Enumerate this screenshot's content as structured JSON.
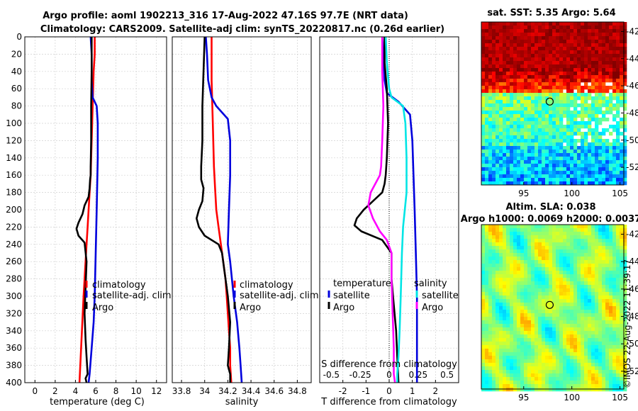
{
  "colors": {
    "climatology": "#ff0000",
    "satellite": "#0000dd",
    "argo": "#000000",
    "temperature_diff": "#ff00ff",
    "salinity_diff": "#00e5e5",
    "zero_line": "#000000"
  },
  "header": {
    "line1": "Argo profile: aoml 1902213_316 17-Aug-2022 47.16S 97.7E (NRT data)",
    "line2": "Climatology: CARS2009. Satellite-adj clim: synTS_20220817.nc (0.26d earlier)"
  },
  "depth_ticks": [
    "0",
    "20",
    "40",
    "60",
    "80",
    "100",
    "120",
    "140",
    "160",
    "180",
    "200",
    "220",
    "240",
    "260",
    "280",
    "300",
    "320",
    "340",
    "360",
    "380",
    "400"
  ],
  "legends": {
    "climatology": "climatology",
    "satellite_adj": "satellite-adj. clim",
    "argo": "Argo",
    "temperature": "temperature",
    "salinity": "salinity",
    "satellite": "satellite"
  },
  "chart_data": [
    {
      "id": "temperature",
      "type": "line",
      "xlabel": "temperature (deg C)",
      "ylabel": "",
      "xlim": [
        -1,
        13
      ],
      "ylim": [
        0,
        400
      ],
      "xticks": [
        "0",
        "2",
        "4",
        "6",
        "8",
        "10",
        "12"
      ],
      "grid": true,
      "series": [
        {
          "name": "climatology",
          "color": "#ff0000",
          "x": [
            5.9,
            5.9,
            5.8,
            5.75,
            5.7,
            5.65,
            5.6,
            5.55,
            5.5,
            5.4,
            5.3,
            5.2,
            5.1,
            5.0,
            4.9,
            4.8,
            4.6,
            4.4
          ],
          "y": [
            0,
            20,
            40,
            60,
            80,
            100,
            120,
            140,
            160,
            180,
            200,
            220,
            240,
            260,
            280,
            300,
            350,
            400
          ]
        },
        {
          "name": "satellite-adj. clim",
          "color": "#0000dd",
          "x": [
            5.5,
            5.6,
            5.6,
            5.7,
            6.1,
            6.2,
            6.2,
            6.1,
            6.0,
            5.9,
            5.8,
            5.6,
            5.4,
            5.3
          ],
          "y": [
            0,
            20,
            50,
            70,
            80,
            100,
            140,
            200,
            250,
            300,
            330,
            360,
            390,
            400
          ]
        },
        {
          "name": "Argo",
          "color": "#000000",
          "x": [
            5.6,
            5.6,
            5.55,
            5.55,
            5.5,
            5.5,
            5.45,
            5.4,
            5.3,
            4.9,
            4.7,
            4.3,
            4.1,
            4.3,
            4.9,
            5.1,
            5.0,
            4.9,
            5.0,
            5.1,
            5.2,
            5.0,
            5.1
          ],
          "y": [
            0,
            40,
            80,
            120,
            150,
            160,
            165,
            175,
            185,
            195,
            205,
            215,
            222,
            230,
            238,
            260,
            290,
            320,
            350,
            370,
            390,
            395,
            400
          ]
        }
      ]
    },
    {
      "id": "salinity",
      "type": "line",
      "xlabel": "salinity",
      "ylabel": "",
      "xlim": [
        33.72,
        34.92
      ],
      "ylim": [
        0,
        400
      ],
      "xticks": [
        "33.8",
        "34",
        "34.2",
        "34.4",
        "34.6",
        "34.8"
      ],
      "grid": true,
      "series": [
        {
          "name": "climatology",
          "color": "#ff0000",
          "x": [
            34.06,
            34.06,
            34.07,
            34.08,
            34.09,
            34.1,
            34.12,
            34.14,
            34.16,
            34.18,
            34.19,
            34.2,
            34.21,
            34.22,
            34.22,
            34.23
          ],
          "y": [
            0,
            50,
            100,
            150,
            175,
            200,
            220,
            240,
            260,
            280,
            300,
            320,
            340,
            360,
            380,
            400
          ]
        },
        {
          "name": "satellite-adj. clim",
          "color": "#0000dd",
          "x": [
            34.01,
            34.02,
            34.03,
            34.06,
            34.1,
            34.2,
            34.22,
            34.22,
            34.21,
            34.2,
            34.22,
            34.25,
            34.28,
            34.3,
            34.31,
            34.32
          ],
          "y": [
            0,
            20,
            50,
            70,
            80,
            95,
            120,
            160,
            200,
            240,
            260,
            300,
            330,
            360,
            380,
            400
          ]
        },
        {
          "name": "Argo",
          "color": "#000000",
          "x": [
            34.0,
            33.99,
            33.98,
            33.98,
            33.97,
            33.97,
            33.99,
            33.98,
            33.95,
            33.93,
            33.95,
            34.0,
            34.12,
            34.15,
            34.18,
            34.2,
            34.22,
            34.21,
            34.2,
            34.22,
            34.22
          ],
          "y": [
            0,
            40,
            80,
            120,
            150,
            165,
            175,
            190,
            200,
            210,
            220,
            230,
            240,
            250,
            280,
            300,
            330,
            360,
            380,
            390,
            400
          ]
        }
      ]
    },
    {
      "id": "difference",
      "type": "line",
      "xlabel": "T difference from climatology",
      "xlabel_top": "S difference from climatology",
      "xlim": [
        -3,
        3
      ],
      "ylim": [
        0,
        400
      ],
      "xticks": [
        "-2",
        "-1",
        "0",
        "1",
        "2"
      ],
      "top_ticks": [
        "-0.5",
        "-0.25",
        "0",
        "0.25",
        "0.5"
      ],
      "top_tick_values": [
        -2.5,
        -1.25,
        0,
        1.25,
        2.5
      ],
      "grid": true,
      "series": [
        {
          "name": "temperature satellite",
          "color": "#0000dd",
          "x": [
            -0.3,
            -0.25,
            -0.2,
            -0.1,
            0.4,
            0.9,
            1.0,
            1.05,
            1.1,
            1.15,
            1.2,
            1.2,
            1.2,
            1.2
          ],
          "y": [
            0,
            20,
            50,
            65,
            75,
            90,
            120,
            160,
            200,
            250,
            300,
            340,
            380,
            400
          ]
        },
        {
          "name": "temperature Argo",
          "color": "#000000",
          "x": [
            -0.2,
            -0.2,
            -0.1,
            -0.05,
            -0.1,
            -0.15,
            -0.2,
            -0.3,
            -0.7,
            -1.1,
            -1.4,
            -1.5,
            -1.2,
            -0.3,
            0.1,
            0.1,
            0.2,
            0.3,
            0.35,
            0.4
          ],
          "y": [
            0,
            30,
            60,
            100,
            140,
            160,
            170,
            180,
            190,
            200,
            210,
            218,
            225,
            235,
            250,
            280,
            310,
            340,
            370,
            400
          ]
        },
        {
          "name": "salinity satellite",
          "color": "#00e5e5",
          "x": [
            -0.15,
            -0.1,
            0,
            0.1,
            0.6,
            0.7,
            0.75,
            0.75,
            0.6,
            0.55,
            0.5,
            0.45,
            0.4,
            0.35,
            0.35
          ],
          "y": [
            0,
            30,
            60,
            70,
            80,
            100,
            140,
            180,
            220,
            250,
            300,
            340,
            370,
            390,
            400
          ]
        },
        {
          "name": "salinity Argo",
          "color": "#ff00ff",
          "x": [
            -0.3,
            -0.3,
            -0.25,
            -0.3,
            -0.35,
            -0.4,
            -0.6,
            -0.8,
            -0.9,
            -0.7,
            -0.4,
            -0.1,
            0.1,
            0.1,
            0.15,
            0.2,
            0.2,
            0.25
          ],
          "y": [
            0,
            40,
            80,
            120,
            150,
            160,
            170,
            180,
            195,
            210,
            225,
            235,
            250,
            280,
            320,
            360,
            390,
            400
          ]
        }
      ]
    },
    {
      "id": "sst_map",
      "type": "heatmap",
      "title": "sat. SST: 5.35 Argo: 5.64",
      "xticks": [
        "95",
        "100",
        "105"
      ],
      "yticks": [
        "-42",
        "-44",
        "-46",
        "-48",
        "-50",
        "-52"
      ],
      "xlim": [
        90.6,
        105.4
      ],
      "ylim": [
        -53.3,
        -41.3
      ],
      "marker": {
        "lon": 97.7,
        "lat": -47.16
      }
    },
    {
      "id": "sla_map",
      "type": "heatmap",
      "title_line1": "Altim. SLA: 0.038",
      "title_line2": "Argo h1000: 0.0069 h2000: 0.0037",
      "xticks": [
        "95",
        "100",
        "105"
      ],
      "yticks": [
        "-42",
        "-44",
        "-46",
        "-48",
        "-50",
        "-52"
      ],
      "xlim": [
        90.6,
        105.4
      ],
      "ylim": [
        -53.3,
        -41.3
      ],
      "marker": {
        "lon": 97.7,
        "lat": -47.16
      }
    }
  ],
  "credit": "©IMOS 22-Aug-2022 11:39:17"
}
